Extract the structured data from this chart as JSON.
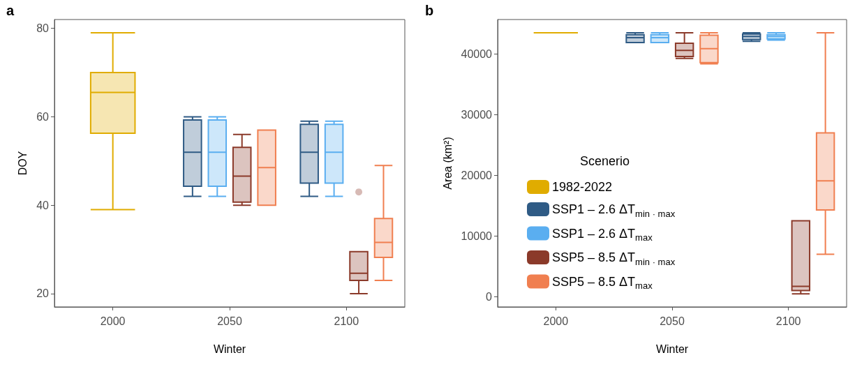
{
  "chart_data": [
    {
      "type": "box",
      "title": "a",
      "xlabel": "Winter",
      "ylabel": "DOY",
      "categories": [
        "2000",
        "2050",
        "2100"
      ],
      "ylim": [
        17,
        82
      ],
      "yticks": [
        20,
        40,
        60,
        80
      ],
      "grid": false,
      "legend": false,
      "series": [
        {
          "color": "#e0ac00",
          "boxes": [
            {
              "low": 39,
              "q1": 56.3,
              "median": 65.5,
              "q3": 70,
              "high": 79
            },
            null,
            null
          ]
        },
        {
          "color": "#2f5b85",
          "boxes": [
            null,
            {
              "low": 42,
              "q1": 44.3,
              "median": 52,
              "q3": 59.3,
              "high": 60
            },
            {
              "low": 42,
              "q1": 45,
              "median": 52,
              "q3": 58.3,
              "high": 59
            }
          ]
        },
        {
          "color": "#5aaef0",
          "boxes": [
            null,
            {
              "low": 42,
              "q1": 44.3,
              "median": 52,
              "q3": 59.3,
              "high": 60
            },
            {
              "low": 42,
              "q1": 45,
              "median": 52,
              "q3": 58.3,
              "high": 59
            }
          ]
        },
        {
          "color": "#8b3a2a",
          "boxes": [
            null,
            {
              "low": 40,
              "q1": 40.7,
              "median": 46.6,
              "q3": 53.1,
              "high": 56
            },
            {
              "low": 20,
              "q1": 23,
              "median": 24.6,
              "q3": 29.5,
              "high": 29.5,
              "outliers": [
                43
              ]
            }
          ]
        },
        {
          "color": "#f07f50",
          "boxes": [
            null,
            {
              "low": 40,
              "q1": 40,
              "median": 48.5,
              "q3": 57,
              "high": 57
            },
            {
              "low": 23,
              "q1": 28.2,
              "median": 31.6,
              "q3": 37,
              "high": 49
            }
          ]
        }
      ]
    },
    {
      "type": "box",
      "title": "b",
      "xlabel": "Winter",
      "ylabel": "Area (km²)",
      "categories": [
        "2000",
        "2050",
        "2100"
      ],
      "ylim": [
        -1700,
        45700
      ],
      "yticks": [
        0,
        10000,
        20000,
        30000,
        40000
      ],
      "grid": false,
      "legend": "left",
      "legend_title": "Scenerio",
      "series": [
        {
          "name": "1982-2022",
          "color": "#e0ac00",
          "boxes": [
            {
              "low": 43500,
              "q1": 43500,
              "median": 43500,
              "q3": 43500,
              "high": 43500
            },
            null,
            null
          ]
        },
        {
          "name": "SSP1 – 2.6 ΔT$_{min · max}$",
          "color": "#2f5b85",
          "boxes": [
            null,
            {
              "low": 41900,
              "q1": 41900,
              "median": 42700,
              "q3": 43200,
              "high": 43500
            },
            {
              "low": 42100,
              "q1": 42400,
              "median": 42900,
              "q3": 43300,
              "high": 43500
            }
          ]
        },
        {
          "name": "SSP1 – 2.6 ΔT$_{max}$",
          "color": "#5aaef0",
          "boxes": [
            null,
            {
              "low": 41900,
              "q1": 41900,
              "median": 42700,
              "q3": 43200,
              "high": 43500
            },
            {
              "low": 42300,
              "q1": 42500,
              "median": 42900,
              "q3": 43200,
              "high": 43500
            }
          ]
        },
        {
          "name": "SSP5 – 8.5 ΔT$_{min · max}$",
          "color": "#8b3a2a",
          "boxes": [
            null,
            {
              "low": 39300,
              "q1": 39600,
              "median": 40600,
              "q3": 41800,
              "high": 43500
            },
            {
              "low": 450,
              "q1": 1000,
              "median": 1700,
              "q3": 12500,
              "high": 12500
            }
          ]
        },
        {
          "name": "SSP5 – 8.5 ΔT$_{max}$",
          "color": "#f07f50",
          "boxes": [
            null,
            {
              "low": 38400,
              "q1": 38600,
              "median": 40900,
              "q3": 43100,
              "high": 43500
            },
            {
              "low": 7000,
              "q1": 14300,
              "median": 19100,
              "q3": 27000,
              "high": 43500
            }
          ]
        }
      ]
    }
  ]
}
